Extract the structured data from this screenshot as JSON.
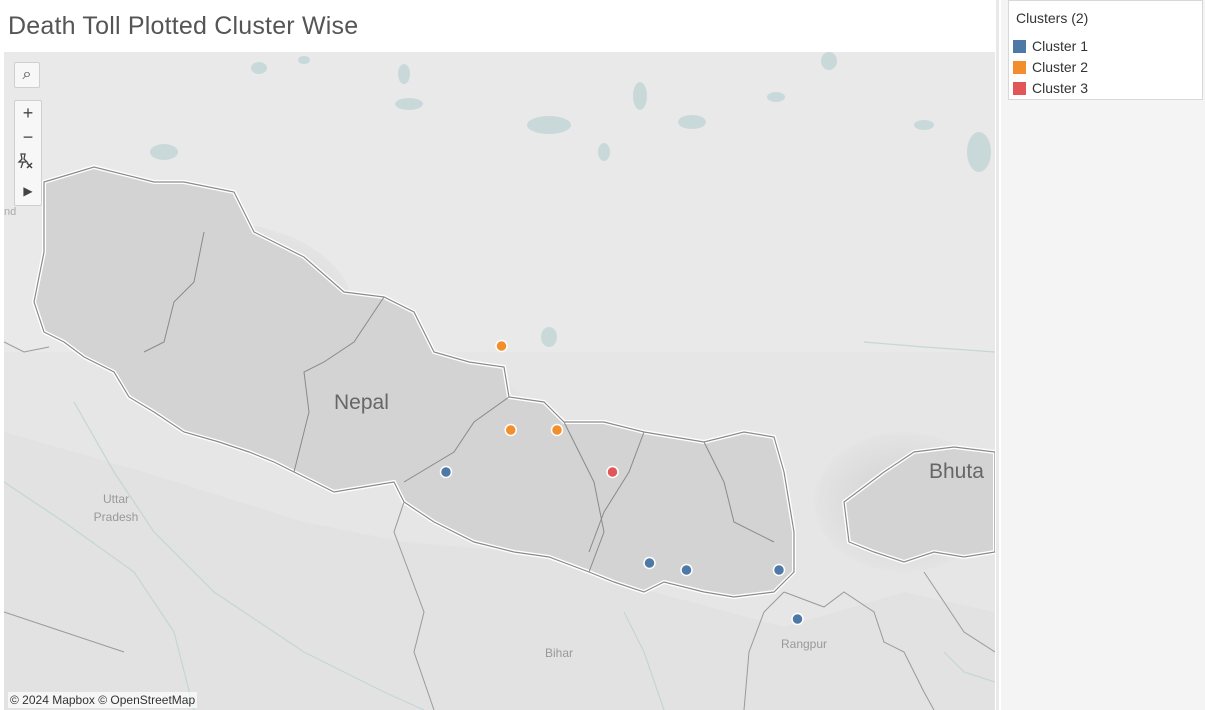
{
  "title": "Death Toll Plotted Cluster Wise",
  "legend": {
    "title": "Clusters (2)",
    "items": [
      {
        "label": "Cluster 1",
        "color": "#4e79a7"
      },
      {
        "label": "Cluster 2",
        "color": "#f28e2b"
      },
      {
        "label": "Cluster 3",
        "color": "#e15759"
      }
    ]
  },
  "map": {
    "country_labels": {
      "nepal": "Nepal",
      "bhutan": "Bhuta"
    },
    "region_labels": {
      "uttar": "Uttar",
      "pradesh": "Pradesh",
      "bihar": "Bihar",
      "rangpur": "Rangpur",
      "edge": "nd"
    },
    "attribution": "© 2024 Mapbox © OpenStreetMap",
    "points": [
      {
        "cluster": "Cluster 2",
        "lon": 84.7,
        "lat": 28.6
      },
      {
        "cluster": "Cluster 2",
        "lon": 84.75,
        "lat": 28.0
      },
      {
        "cluster": "Cluster 2",
        "lon": 85.0,
        "lat": 28.0
      },
      {
        "cluster": "Cluster 3",
        "lon": 85.3,
        "lat": 27.7
      },
      {
        "cluster": "Cluster 1",
        "lon": 84.4,
        "lat": 27.7
      },
      {
        "cluster": "Cluster 1",
        "lon": 85.5,
        "lat": 27.05
      },
      {
        "cluster": "Cluster 1",
        "lon": 85.7,
        "lat": 27.0
      },
      {
        "cluster": "Cluster 1",
        "lon": 86.2,
        "lat": 27.0
      },
      {
        "cluster": "Cluster 1",
        "lon": 86.3,
        "lat": 26.65
      }
    ]
  },
  "toolbar": {
    "search": "⌕",
    "zoom_in": "+",
    "zoom_out": "−",
    "play": "▶"
  }
}
